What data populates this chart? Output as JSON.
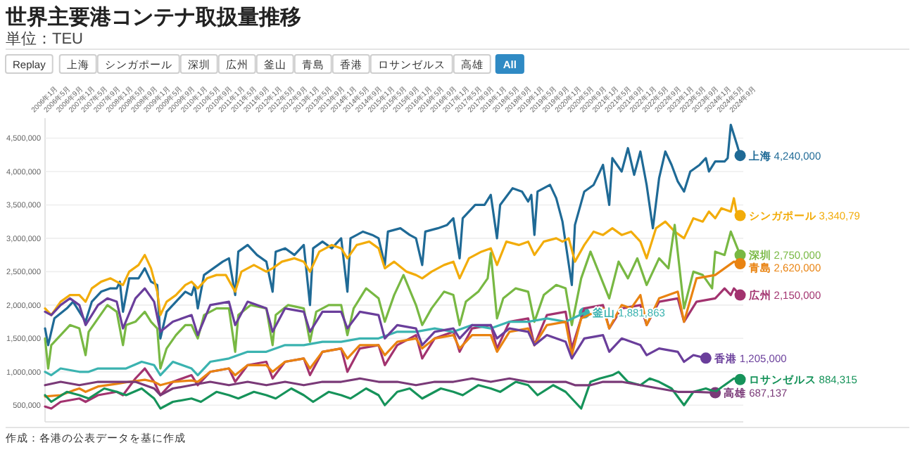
{
  "chart_data": {
    "type": "line",
    "title": "世界主要港コンテナ取扱量推移",
    "subtitle": "単位：TEU",
    "legend": "right",
    "grid": "y",
    "xlim": [
      "2006-01",
      "2024-09"
    ],
    "ylim": [
      250000,
      4800000
    ],
    "yticks": [
      {
        "value": 500000,
        "label": "500,000"
      },
      {
        "value": 1000000,
        "label": "1,000,000"
      },
      {
        "value": 1500000,
        "label": "1,500,000"
      },
      {
        "value": 2000000,
        "label": "2,000,000"
      },
      {
        "value": 2500000,
        "label": "2,500,000"
      },
      {
        "value": 3000000,
        "label": "3,000,000"
      },
      {
        "value": 3500000,
        "label": "3,500,000"
      },
      {
        "value": 4000000,
        "label": "4,000,000"
      },
      {
        "value": 4500000,
        "label": "4,500,000"
      }
    ],
    "xticks": [
      {
        "value": "2006-01",
        "label": "2006年1月"
      },
      {
        "value": "2006-05",
        "label": "2006年5月"
      },
      {
        "value": "2006-09",
        "label": "2006年9月"
      },
      {
        "value": "2007-01",
        "label": "2007年1月"
      },
      {
        "value": "2007-05",
        "label": "2007年5月"
      },
      {
        "value": "2007-09",
        "label": "2007年9月"
      },
      {
        "value": "2008-01",
        "label": "2008年1月"
      },
      {
        "value": "2008-05",
        "label": "2008年5月"
      },
      {
        "value": "2008-09",
        "label": "2008年9月"
      },
      {
        "value": "2009-01",
        "label": "2009年1月"
      },
      {
        "value": "2009-05",
        "label": "2009年5月"
      },
      {
        "value": "2009-09",
        "label": "2009年9月"
      },
      {
        "value": "2010-01",
        "label": "2010年1月"
      },
      {
        "value": "2010-05",
        "label": "2010年5月"
      },
      {
        "value": "2010-09",
        "label": "2010年9月"
      },
      {
        "value": "2011-01",
        "label": "2011年1月"
      },
      {
        "value": "2011-05",
        "label": "2011年5月"
      },
      {
        "value": "2011-09",
        "label": "2011年9月"
      },
      {
        "value": "2012-01",
        "label": "2012年1月"
      },
      {
        "value": "2012-05",
        "label": "2012年5月"
      },
      {
        "value": "2012-09",
        "label": "2012年9月"
      },
      {
        "value": "2013-01",
        "label": "2013年1月"
      },
      {
        "value": "2013-05",
        "label": "2013年5月"
      },
      {
        "value": "2013-09",
        "label": "2013年9月"
      },
      {
        "value": "2014-01",
        "label": "2014年1月"
      },
      {
        "value": "2014-05",
        "label": "2014年5月"
      },
      {
        "value": "2014-09",
        "label": "2014年9月"
      },
      {
        "value": "2015-01",
        "label": "2015年1月"
      },
      {
        "value": "2015-05",
        "label": "2015年5月"
      },
      {
        "value": "2015-09",
        "label": "2015年9月"
      },
      {
        "value": "2016-01",
        "label": "2016年1月"
      },
      {
        "value": "2016-05",
        "label": "2016年5月"
      },
      {
        "value": "2016-09",
        "label": "2016年9月"
      },
      {
        "value": "2017-01",
        "label": "2017年1月"
      },
      {
        "value": "2017-05",
        "label": "2017年5月"
      },
      {
        "value": "2017-09",
        "label": "2017年9月"
      },
      {
        "value": "2018-01",
        "label": "2018年1月"
      },
      {
        "value": "2018-05",
        "label": "2018年5月"
      },
      {
        "value": "2018-09",
        "label": "2018年9月"
      },
      {
        "value": "2019-01",
        "label": "2019年1月"
      },
      {
        "value": "2019-05",
        "label": "2019年5月"
      },
      {
        "value": "2019-09",
        "label": "2019年9月"
      },
      {
        "value": "2020-01",
        "label": "2020年1月"
      },
      {
        "value": "2020-05",
        "label": "2020年5月"
      },
      {
        "value": "2020-09",
        "label": "2020年9月"
      },
      {
        "value": "2021-01",
        "label": "2021年1月"
      },
      {
        "value": "2021-05",
        "label": "2021年5月"
      },
      {
        "value": "2021-09",
        "label": "2021年9月"
      },
      {
        "value": "2022-01",
        "label": "2022年1月"
      },
      {
        "value": "2022-05",
        "label": "2022年5月"
      },
      {
        "value": "2022-09",
        "label": "2022年9月"
      },
      {
        "value": "2023-01",
        "label": "2023年1月"
      },
      {
        "value": "2023-05",
        "label": "2023年5月"
      },
      {
        "value": "2023-09",
        "label": "2023年9月"
      },
      {
        "value": "2024-01",
        "label": "2024年1月"
      },
      {
        "value": "2024-05",
        "label": "2024年5月"
      },
      {
        "value": "2024-09",
        "label": "2024年9月"
      }
    ],
    "annotations": [
      "Replay",
      "All",
      "作成：各港の公表データを基に作成",
      "4,240,000",
      "3,340,79",
      "2,750,000",
      "2,150,000",
      "1,881,863",
      "2,620,000",
      "1,205,000",
      "884,315",
      "687,137"
    ],
    "series": [
      {
        "name": "上海",
        "color": "#1f6a96",
        "x": [
          "2006-01",
          "2006-02",
          "2006-04",
          "2006-08",
          "2006-10",
          "2006-12",
          "2007-02",
          "2007-04",
          "2007-07",
          "2007-10",
          "2007-12",
          "2008-01",
          "2008-02",
          "2008-04",
          "2008-07",
          "2008-09",
          "2008-11",
          "2009-01",
          "2009-02",
          "2009-04",
          "2009-07",
          "2009-10",
          "2009-12",
          "2010-01",
          "2010-02",
          "2010-04",
          "2010-07",
          "2010-10",
          "2010-12",
          "2011-02",
          "2011-03",
          "2011-06",
          "2011-09",
          "2011-12",
          "2012-02",
          "2012-03",
          "2012-06",
          "2012-09",
          "2012-12",
          "2013-02",
          "2013-03",
          "2013-06",
          "2013-09",
          "2013-12",
          "2014-02",
          "2014-03",
          "2014-07",
          "2014-10",
          "2014-12",
          "2015-02",
          "2015-03",
          "2015-07",
          "2015-10",
          "2015-12",
          "2016-02",
          "2016-03",
          "2016-07",
          "2016-10",
          "2016-12",
          "2017-02",
          "2017-03",
          "2017-07",
          "2017-10",
          "2017-12",
          "2018-02",
          "2018-03",
          "2018-07",
          "2018-10",
          "2018-12",
          "2019-01",
          "2019-02",
          "2019-03",
          "2019-07",
          "2019-09",
          "2019-11",
          "2020-02",
          "2020-03",
          "2020-06",
          "2020-09",
          "2020-12",
          "2021-02",
          "2021-03",
          "2021-06",
          "2021-08",
          "2021-10",
          "2021-12",
          "2022-02",
          "2022-04",
          "2022-06",
          "2022-08",
          "2022-10",
          "2022-12",
          "2023-02",
          "2023-04",
          "2023-07",
          "2023-09",
          "2023-10",
          "2023-12",
          "2024-03",
          "2024-04",
          "2024-05",
          "2024-07",
          "2024-08"
        ],
        "values": [
          1650000,
          1400000,
          1800000,
          1950000,
          2050000,
          1900000,
          1750000,
          2050000,
          2200000,
          2250000,
          2250000,
          2350000,
          1900000,
          2400000,
          2400000,
          2550000,
          2350000,
          2300000,
          1500000,
          1900000,
          2050000,
          2200000,
          2150000,
          2300000,
          1950000,
          2450000,
          2550000,
          2650000,
          2700000,
          2150000,
          2800000,
          2900000,
          2750000,
          2650000,
          2200000,
          2800000,
          2850000,
          2750000,
          2900000,
          2000000,
          2850000,
          2950000,
          2850000,
          3000000,
          2200000,
          3000000,
          3100000,
          3050000,
          3000000,
          2600000,
          3100000,
          3150000,
          3050000,
          3000000,
          2600000,
          3100000,
          3150000,
          3200000,
          3300000,
          2700000,
          3300000,
          3500000,
          3500000,
          3650000,
          3000000,
          3500000,
          3750000,
          3700000,
          3550000,
          3650000,
          3050000,
          3700000,
          3800000,
          3600000,
          3250000,
          2300000,
          3200000,
          3700000,
          3800000,
          4100000,
          3500000,
          4200000,
          4000000,
          4350000,
          3950000,
          4300000,
          3800000,
          3150000,
          3900000,
          4300000,
          4100000,
          3850000,
          3700000,
          4000000,
          4100000,
          4200000,
          4000000,
          4150000,
          4150000,
          4200000,
          4700000,
          4400000,
          4240000
        ]
      },
      {
        "name": "シンガポール",
        "color": "#f2ac0a",
        "x": [
          "2006-01",
          "2006-03",
          "2006-06",
          "2006-09",
          "2006-12",
          "2007-02",
          "2007-04",
          "2007-07",
          "2007-10",
          "2007-12",
          "2008-02",
          "2008-04",
          "2008-07",
          "2008-09",
          "2008-11",
          "2009-01",
          "2009-02",
          "2009-04",
          "2009-07",
          "2009-10",
          "2009-12",
          "2010-02",
          "2010-05",
          "2010-08",
          "2010-11",
          "2011-02",
          "2011-04",
          "2011-08",
          "2011-12",
          "2012-02",
          "2012-05",
          "2012-09",
          "2012-12",
          "2013-02",
          "2013-05",
          "2013-09",
          "2013-12",
          "2014-02",
          "2014-05",
          "2014-09",
          "2014-12",
          "2015-02",
          "2015-05",
          "2015-09",
          "2015-12",
          "2016-02",
          "2016-05",
          "2016-09",
          "2016-12",
          "2017-02",
          "2017-05",
          "2017-09",
          "2017-12",
          "2018-02",
          "2018-05",
          "2018-09",
          "2018-12",
          "2019-02",
          "2019-05",
          "2019-09",
          "2019-11",
          "2020-01",
          "2020-03",
          "2020-06",
          "2020-09",
          "2020-12",
          "2021-03",
          "2021-06",
          "2021-09",
          "2021-12",
          "2022-02",
          "2022-05",
          "2022-08",
          "2022-11",
          "2023-02",
          "2023-05",
          "2023-08",
          "2023-10",
          "2023-12",
          "2024-02",
          "2024-05",
          "2024-06",
          "2024-07",
          "2024-08"
        ],
        "values": [
          1950000,
          1850000,
          2050000,
          2150000,
          2150000,
          2050000,
          2250000,
          2350000,
          2400000,
          2350000,
          2300000,
          2500000,
          2600000,
          2750000,
          2550000,
          2200000,
          1850000,
          2050000,
          2150000,
          2300000,
          2350000,
          2250000,
          2400000,
          2450000,
          2450000,
          2200000,
          2500000,
          2600000,
          2500000,
          2550000,
          2650000,
          2700000,
          2650000,
          2500000,
          2800000,
          2900000,
          2850000,
          2700000,
          2900000,
          2950000,
          2850000,
          2550000,
          2650000,
          2500000,
          2450000,
          2400000,
          2500000,
          2600000,
          2650000,
          2400000,
          2700000,
          2800000,
          2850000,
          2600000,
          2950000,
          2900000,
          2950000,
          2750000,
          2950000,
          3000000,
          2950000,
          3000000,
          2650000,
          2900000,
          3100000,
          3050000,
          3150000,
          3050000,
          3100000,
          2950000,
          2700000,
          3150000,
          3250000,
          3100000,
          3000000,
          3300000,
          3250000,
          3400000,
          3300000,
          3450000,
          3400000,
          3600000,
          3350000,
          3340790
        ]
      },
      {
        "name": "深圳",
        "color": "#78b843",
        "x": [
          "2006-01",
          "2006-02",
          "2006-03",
          "2006-06",
          "2006-09",
          "2006-12",
          "2007-02",
          "2007-03",
          "2007-06",
          "2007-09",
          "2007-12",
          "2008-02",
          "2008-03",
          "2008-06",
          "2008-09",
          "2008-11",
          "2009-01",
          "2009-02",
          "2009-04",
          "2009-07",
          "2009-10",
          "2009-12",
          "2010-02",
          "2010-04",
          "2010-08",
          "2010-12",
          "2011-02",
          "2011-03",
          "2011-07",
          "2011-12",
          "2012-02",
          "2012-03",
          "2012-07",
          "2012-12",
          "2013-02",
          "2013-04",
          "2013-08",
          "2013-12",
          "2014-02",
          "2014-04",
          "2014-08",
          "2014-12",
          "2015-02",
          "2015-05",
          "2015-08",
          "2015-12",
          "2016-02",
          "2016-05",
          "2016-09",
          "2016-12",
          "2017-02",
          "2017-04",
          "2017-08",
          "2017-11",
          "2017-12",
          "2018-02",
          "2018-04",
          "2018-08",
          "2018-12",
          "2019-02",
          "2019-05",
          "2019-09",
          "2019-12",
          "2020-02",
          "2020-05",
          "2020-08",
          "2020-11",
          "2021-02",
          "2021-05",
          "2021-08",
          "2021-11",
          "2022-02",
          "2022-06",
          "2022-09",
          "2022-11",
          "2023-02",
          "2023-05",
          "2023-08",
          "2023-11",
          "2023-12",
          "2024-03",
          "2024-05",
          "2024-08"
        ],
        "values": [
          1500000,
          1050000,
          1400000,
          1550000,
          1700000,
          1650000,
          1250000,
          1600000,
          1800000,
          2000000,
          1900000,
          1400000,
          1700000,
          1750000,
          1900000,
          1750000,
          1650000,
          1050000,
          1350000,
          1550000,
          1700000,
          1700000,
          1500000,
          1850000,
          1950000,
          1950000,
          1300000,
          1850000,
          2000000,
          1950000,
          1400000,
          1850000,
          2000000,
          1950000,
          1450000,
          1900000,
          2000000,
          2000000,
          1550000,
          1950000,
          2250000,
          2100000,
          1750000,
          2150000,
          2450000,
          2000000,
          1700000,
          1950000,
          2200000,
          2150000,
          1700000,
          2050000,
          2200000,
          2400000,
          2780000,
          1800000,
          2100000,
          2250000,
          2200000,
          1750000,
          2150000,
          2300000,
          2250000,
          1700000,
          2400000,
          2800000,
          2450000,
          2100000,
          2650000,
          2400000,
          2700000,
          2300000,
          2700000,
          2550000,
          3200000,
          1950000,
          2500000,
          2450000,
          2250000,
          2800000,
          2750000,
          3100000,
          2750000
        ]
      },
      {
        "name": "広州",
        "color": "#a2336f",
        "x": [
          "2006-01",
          "2006-03",
          "2006-06",
          "2006-12",
          "2007-02",
          "2007-06",
          "2007-12",
          "2008-02",
          "2008-06",
          "2008-09",
          "2008-12",
          "2009-02",
          "2009-06",
          "2009-12",
          "2010-02",
          "2010-06",
          "2010-12",
          "2011-02",
          "2011-06",
          "2011-12",
          "2012-02",
          "2012-06",
          "2012-12",
          "2013-02",
          "2013-06",
          "2013-12",
          "2014-02",
          "2014-06",
          "2014-12",
          "2015-02",
          "2015-06",
          "2015-12",
          "2016-02",
          "2016-06",
          "2016-12",
          "2017-02",
          "2017-06",
          "2017-12",
          "2018-02",
          "2018-06",
          "2018-12",
          "2019-02",
          "2019-06",
          "2019-12",
          "2020-02",
          "2020-06",
          "2020-12",
          "2021-02",
          "2021-06",
          "2021-12",
          "2022-02",
          "2022-06",
          "2022-12",
          "2023-02",
          "2023-06",
          "2023-12",
          "2024-03",
          "2024-05",
          "2024-06",
          "2024-08"
        ],
        "values": [
          480000,
          450000,
          550000,
          600000,
          550000,
          650000,
          700000,
          650000,
          900000,
          1050000,
          850000,
          650000,
          850000,
          950000,
          800000,
          1000000,
          1050000,
          850000,
          1100000,
          1150000,
          900000,
          1150000,
          1200000,
          950000,
          1300000,
          1350000,
          1000000,
          1350000,
          1400000,
          1100000,
          1400000,
          1550000,
          1200000,
          1500000,
          1600000,
          1300000,
          1650000,
          1700000,
          1350000,
          1750000,
          1800000,
          1400000,
          1850000,
          1900000,
          1350000,
          1950000,
          2000000,
          1650000,
          1950000,
          2000000,
          1700000,
          2050000,
          2100000,
          1750000,
          2050000,
          2100000,
          2250000,
          2150000,
          2250000,
          2150000
        ]
      },
      {
        "name": "釜山",
        "color": "#3bb3b0",
        "x": [
          "2006-01",
          "2006-03",
          "2006-06",
          "2006-12",
          "2007-03",
          "2007-06",
          "2007-12",
          "2008-03",
          "2008-08",
          "2008-12",
          "2009-02",
          "2009-06",
          "2009-12",
          "2010-02",
          "2010-06",
          "2010-12",
          "2011-06",
          "2011-12",
          "2012-06",
          "2012-12",
          "2013-06",
          "2013-12",
          "2014-06",
          "2014-12",
          "2015-06",
          "2015-12",
          "2016-06",
          "2016-12",
          "2017-06",
          "2017-12",
          "2018-06",
          "2018-12",
          "2019-06",
          "2019-12",
          "2020-06"
        ],
        "values": [
          1000000,
          950000,
          1050000,
          1000000,
          1000000,
          1050000,
          1050000,
          1050000,
          1150000,
          1100000,
          950000,
          1150000,
          1050000,
          950000,
          1150000,
          1200000,
          1300000,
          1300000,
          1400000,
          1400000,
          1450000,
          1450000,
          1500000,
          1500000,
          1600000,
          1600000,
          1650000,
          1600000,
          1700000,
          1650000,
          1750000,
          1750000,
          1800000,
          1750000,
          1881863
        ]
      },
      {
        "name": "青島",
        "color": "#e98311",
        "x": [
          "2006-01",
          "2006-06",
          "2006-10",
          "2006-12",
          "2007-02",
          "2007-06",
          "2007-12",
          "2008-04",
          "2008-09",
          "2008-12",
          "2009-02",
          "2009-06",
          "2009-12",
          "2010-02",
          "2010-06",
          "2010-12",
          "2011-02",
          "2011-06",
          "2011-12",
          "2012-02",
          "2012-06",
          "2012-12",
          "2013-02",
          "2013-06",
          "2013-12",
          "2014-02",
          "2014-06",
          "2014-12",
          "2015-02",
          "2015-06",
          "2015-12",
          "2016-02",
          "2016-06",
          "2016-12",
          "2017-02",
          "2017-06",
          "2017-12",
          "2018-02",
          "2018-06",
          "2018-12",
          "2019-02",
          "2019-06",
          "2019-12",
          "2020-02",
          "2020-05",
          "2020-12",
          "2021-02",
          "2021-06",
          "2021-09",
          "2021-12",
          "2022-02",
          "2022-06",
          "2022-12",
          "2023-02",
          "2023-06",
          "2023-12",
          "2024-03",
          "2024-06",
          "2024-08"
        ],
        "values": [
          630000,
          650000,
          720000,
          750000,
          700000,
          780000,
          820000,
          850000,
          880000,
          850000,
          800000,
          850000,
          870000,
          850000,
          1000000,
          1050000,
          950000,
          1100000,
          1100000,
          1000000,
          1150000,
          1200000,
          1050000,
          1300000,
          1350000,
          1200000,
          1400000,
          1400000,
          1250000,
          1450000,
          1500000,
          1350000,
          1500000,
          1550000,
          1350000,
          1550000,
          1550000,
          1300000,
          1600000,
          1650000,
          1400000,
          1700000,
          1750000,
          1250000,
          1800000,
          1950000,
          1650000,
          2000000,
          1950000,
          2150000,
          1700000,
          2100000,
          2200000,
          1750000,
          2400000,
          2450000,
          2550000,
          2650000,
          2620000
        ]
      },
      {
        "name": "香港",
        "color": "#6a3e9b",
        "x": [
          "2006-01",
          "2006-03",
          "2006-06",
          "2006-09",
          "2006-12",
          "2007-02",
          "2007-06",
          "2007-09",
          "2007-12",
          "2008-02",
          "2008-06",
          "2008-09",
          "2008-12",
          "2009-02",
          "2009-06",
          "2009-12",
          "2010-02",
          "2010-06",
          "2010-12",
          "2011-02",
          "2011-06",
          "2011-12",
          "2012-02",
          "2012-06",
          "2012-12",
          "2013-02",
          "2013-06",
          "2013-12",
          "2014-02",
          "2014-06",
          "2014-12",
          "2015-02",
          "2015-06",
          "2015-12",
          "2016-02",
          "2016-06",
          "2016-12",
          "2017-02",
          "2017-06",
          "2017-12",
          "2018-02",
          "2018-06",
          "2018-12",
          "2019-02",
          "2019-06",
          "2019-12",
          "2020-02",
          "2020-06",
          "2020-12",
          "2021-02",
          "2021-06",
          "2021-12",
          "2022-02",
          "2022-06",
          "2022-12",
          "2023-02",
          "2023-05",
          "2023-09"
        ],
        "values": [
          1900000,
          1850000,
          2000000,
          2100000,
          2000000,
          1700000,
          2000000,
          2100000,
          2050000,
          1650000,
          2100000,
          2250000,
          2050000,
          1600000,
          1750000,
          1850000,
          1550000,
          2000000,
          2050000,
          1700000,
          2050000,
          1950000,
          1600000,
          1950000,
          1900000,
          1600000,
          1900000,
          1900000,
          1650000,
          1900000,
          1850000,
          1500000,
          1700000,
          1650000,
          1400000,
          1600000,
          1650000,
          1500000,
          1700000,
          1700000,
          1500000,
          1650000,
          1600000,
          1400000,
          1550000,
          1450000,
          1200000,
          1500000,
          1550000,
          1300000,
          1500000,
          1400000,
          1250000,
          1350000,
          1300000,
          1150000,
          1250000,
          1205000
        ]
      },
      {
        "name": "ロサンゼルス",
        "color": "#16935a",
        "x": [
          "2006-01",
          "2006-03",
          "2006-08",
          "2006-12",
          "2007-03",
          "2007-08",
          "2007-12",
          "2008-03",
          "2008-08",
          "2008-12",
          "2009-02",
          "2009-06",
          "2009-12",
          "2010-03",
          "2010-08",
          "2010-12",
          "2011-03",
          "2011-08",
          "2011-12",
          "2012-03",
          "2012-08",
          "2012-12",
          "2013-03",
          "2013-08",
          "2013-12",
          "2014-03",
          "2014-08",
          "2014-12",
          "2015-02",
          "2015-06",
          "2015-10",
          "2016-02",
          "2016-08",
          "2016-12",
          "2017-03",
          "2017-08",
          "2017-12",
          "2018-03",
          "2018-08",
          "2018-12",
          "2019-03",
          "2019-08",
          "2019-12",
          "2020-03",
          "2020-05",
          "2020-08",
          "2020-11",
          "2021-03",
          "2021-05",
          "2021-08",
          "2021-12",
          "2022-03",
          "2022-06",
          "2022-10",
          "2023-02",
          "2023-05",
          "2023-09",
          "2023-12",
          "2024-03",
          "2024-06",
          "2024-08"
        ],
        "values": [
          650000,
          550000,
          700000,
          650000,
          600000,
          750000,
          700000,
          650000,
          750000,
          600000,
          450000,
          550000,
          600000,
          550000,
          700000,
          650000,
          600000,
          700000,
          650000,
          600000,
          750000,
          650000,
          550000,
          700000,
          650000,
          600000,
          750000,
          650000,
          500000,
          700000,
          750000,
          600000,
          750000,
          700000,
          650000,
          800000,
          750000,
          700000,
          850000,
          800000,
          650000,
          800000,
          700000,
          550000,
          450000,
          850000,
          900000,
          950000,
          1000000,
          850000,
          800000,
          900000,
          850000,
          750000,
          500000,
          700000,
          750000,
          700000,
          800000,
          900000,
          884315
        ]
      },
      {
        "name": "高雄",
        "color": "#7a3a78",
        "x": [
          "2006-01",
          "2006-06",
          "2006-12",
          "2007-06",
          "2007-12",
          "2008-06",
          "2008-12",
          "2009-02",
          "2009-06",
          "2009-12",
          "2010-06",
          "2010-12",
          "2011-06",
          "2011-12",
          "2012-06",
          "2012-12",
          "2013-06",
          "2013-12",
          "2014-06",
          "2014-12",
          "2015-06",
          "2015-12",
          "2016-06",
          "2016-12",
          "2017-06",
          "2017-12",
          "2018-06",
          "2018-12",
          "2019-06",
          "2019-12",
          "2020-03",
          "2020-08",
          "2020-12",
          "2021-06",
          "2021-12",
          "2022-06",
          "2022-12",
          "2023-06",
          "2023-12"
        ],
        "values": [
          800000,
          850000,
          800000,
          850000,
          850000,
          850000,
          750000,
          650000,
          750000,
          800000,
          850000,
          800000,
          850000,
          800000,
          850000,
          800000,
          850000,
          850000,
          900000,
          850000,
          850000,
          800000,
          850000,
          850000,
          900000,
          850000,
          900000,
          850000,
          850000,
          850000,
          800000,
          800000,
          850000,
          850000,
          800000,
          750000,
          700000,
          700000,
          687137
        ]
      }
    ]
  }
}
